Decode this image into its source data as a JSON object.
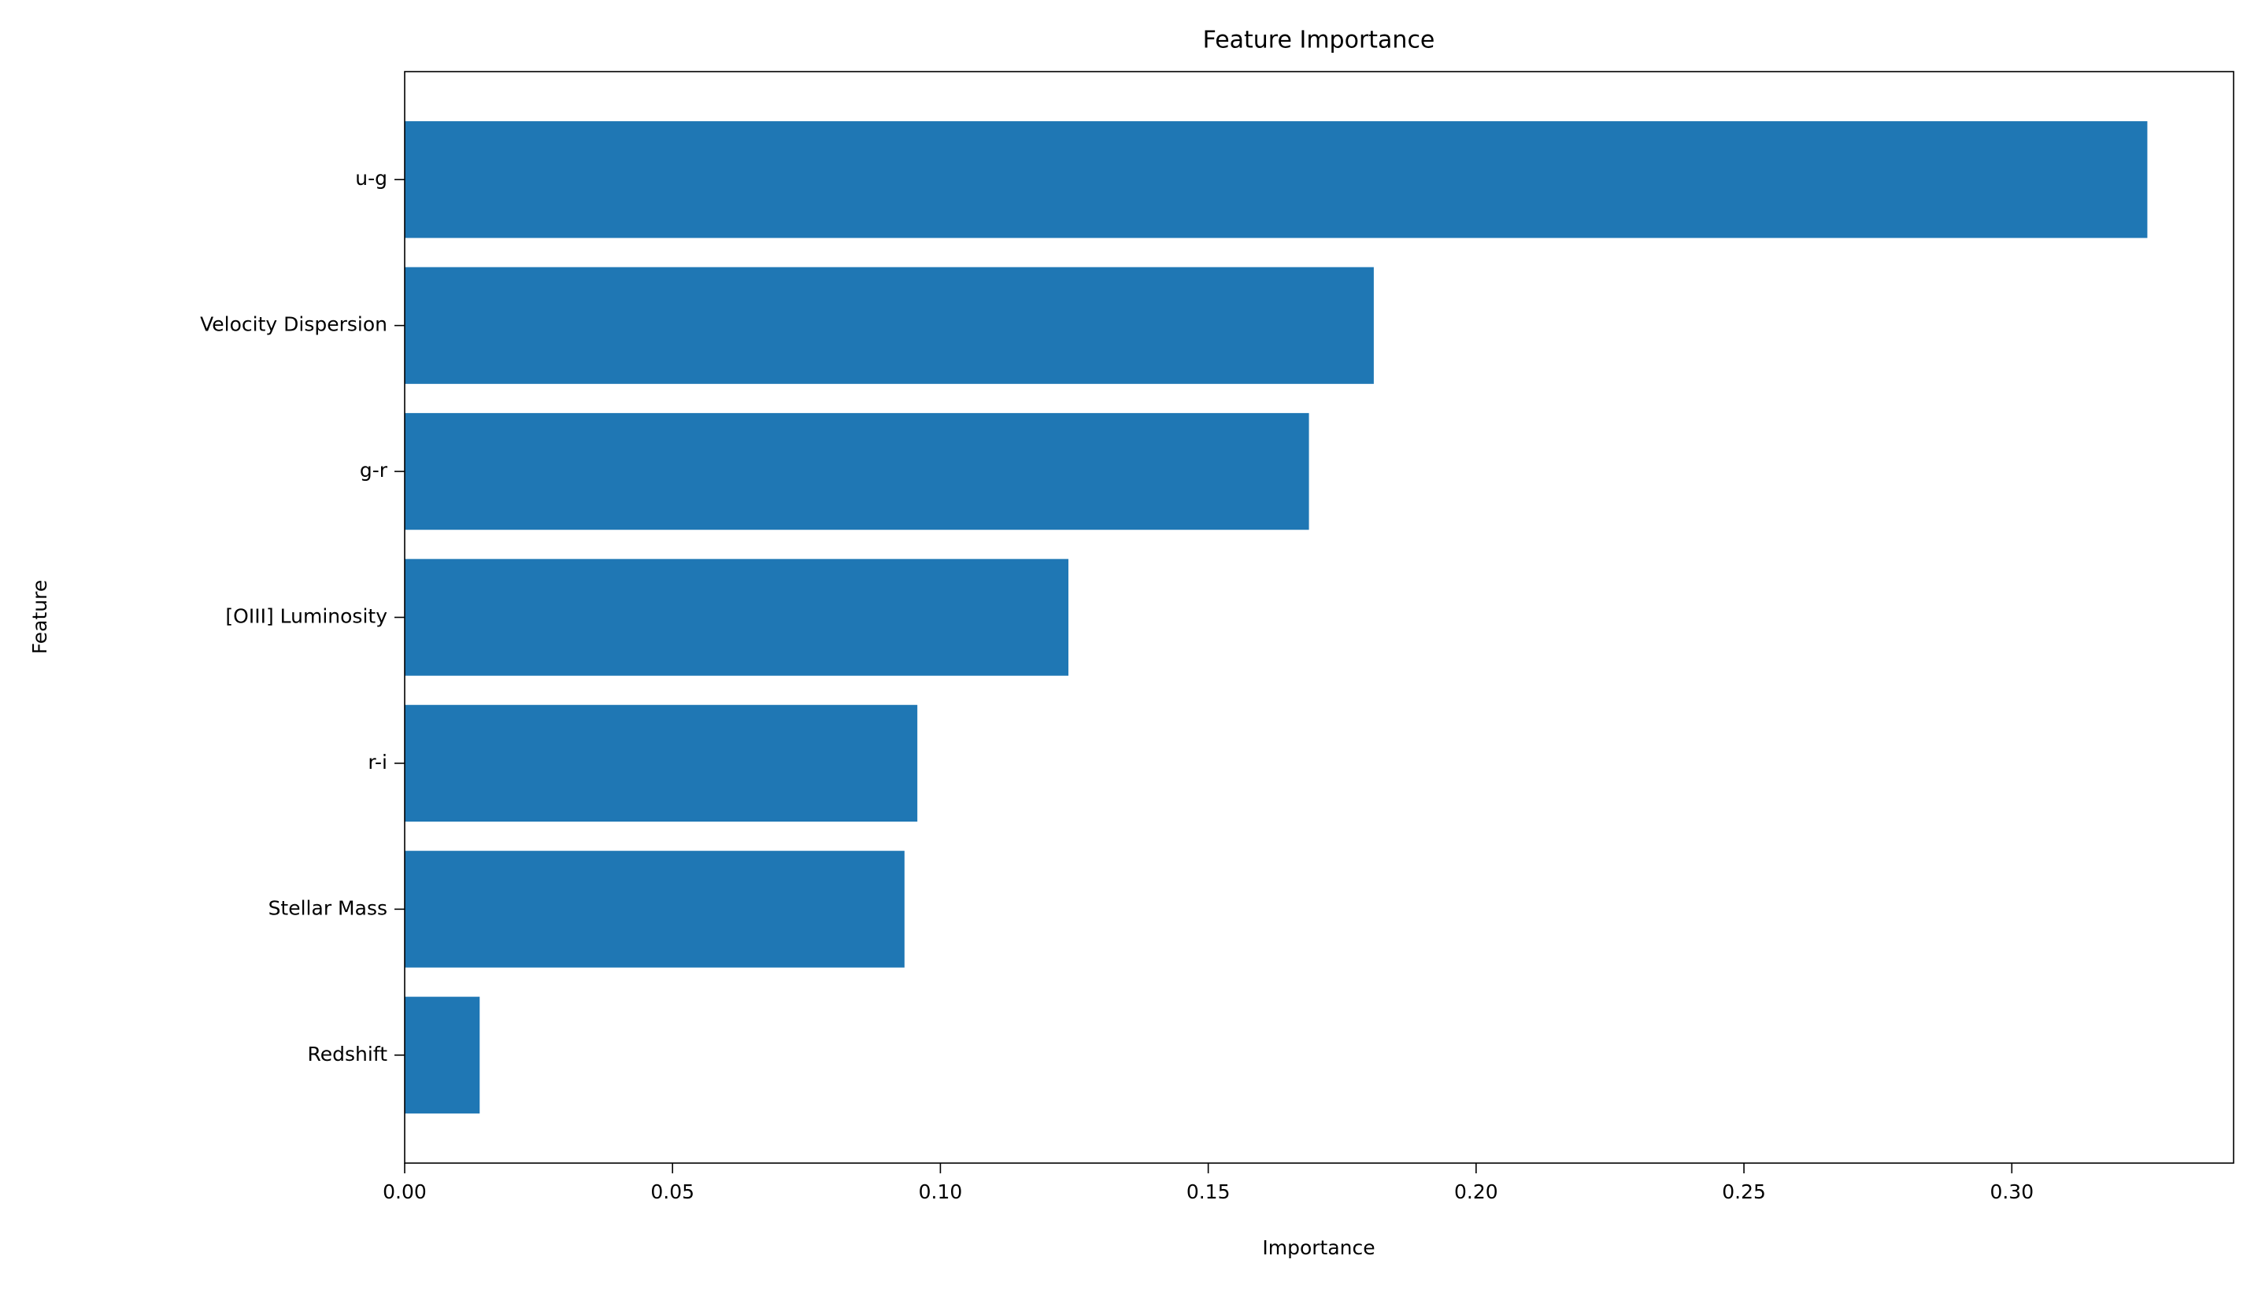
{
  "chart_data": {
    "type": "barh",
    "title": "Feature Importance",
    "x_label": "Importance",
    "y_label": "Feature",
    "categories": [
      "u-g",
      "Velocity Dispersion",
      "g-r",
      "[OIII] Luminosity",
      "r-i",
      "Stellar Mass",
      "Redshift"
    ],
    "values": [
      0.3253,
      0.1809,
      0.1688,
      0.1239,
      0.0957,
      0.0933,
      0.014
    ],
    "color": "#1f77b4",
    "xlim": [
      0,
      0.3414
    ],
    "xticks": [
      {
        "value": 0,
        "label": "0.00"
      },
      {
        "value": 0.05,
        "label": "0.05"
      },
      {
        "value": 0.1,
        "label": "0.10"
      },
      {
        "value": 0.15,
        "label": "0.15"
      },
      {
        "value": 0.2,
        "label": "0.20"
      },
      {
        "value": 0.25,
        "label": "0.25"
      },
      {
        "value": 0.3,
        "label": "0.30"
      }
    ],
    "grid": false
  }
}
